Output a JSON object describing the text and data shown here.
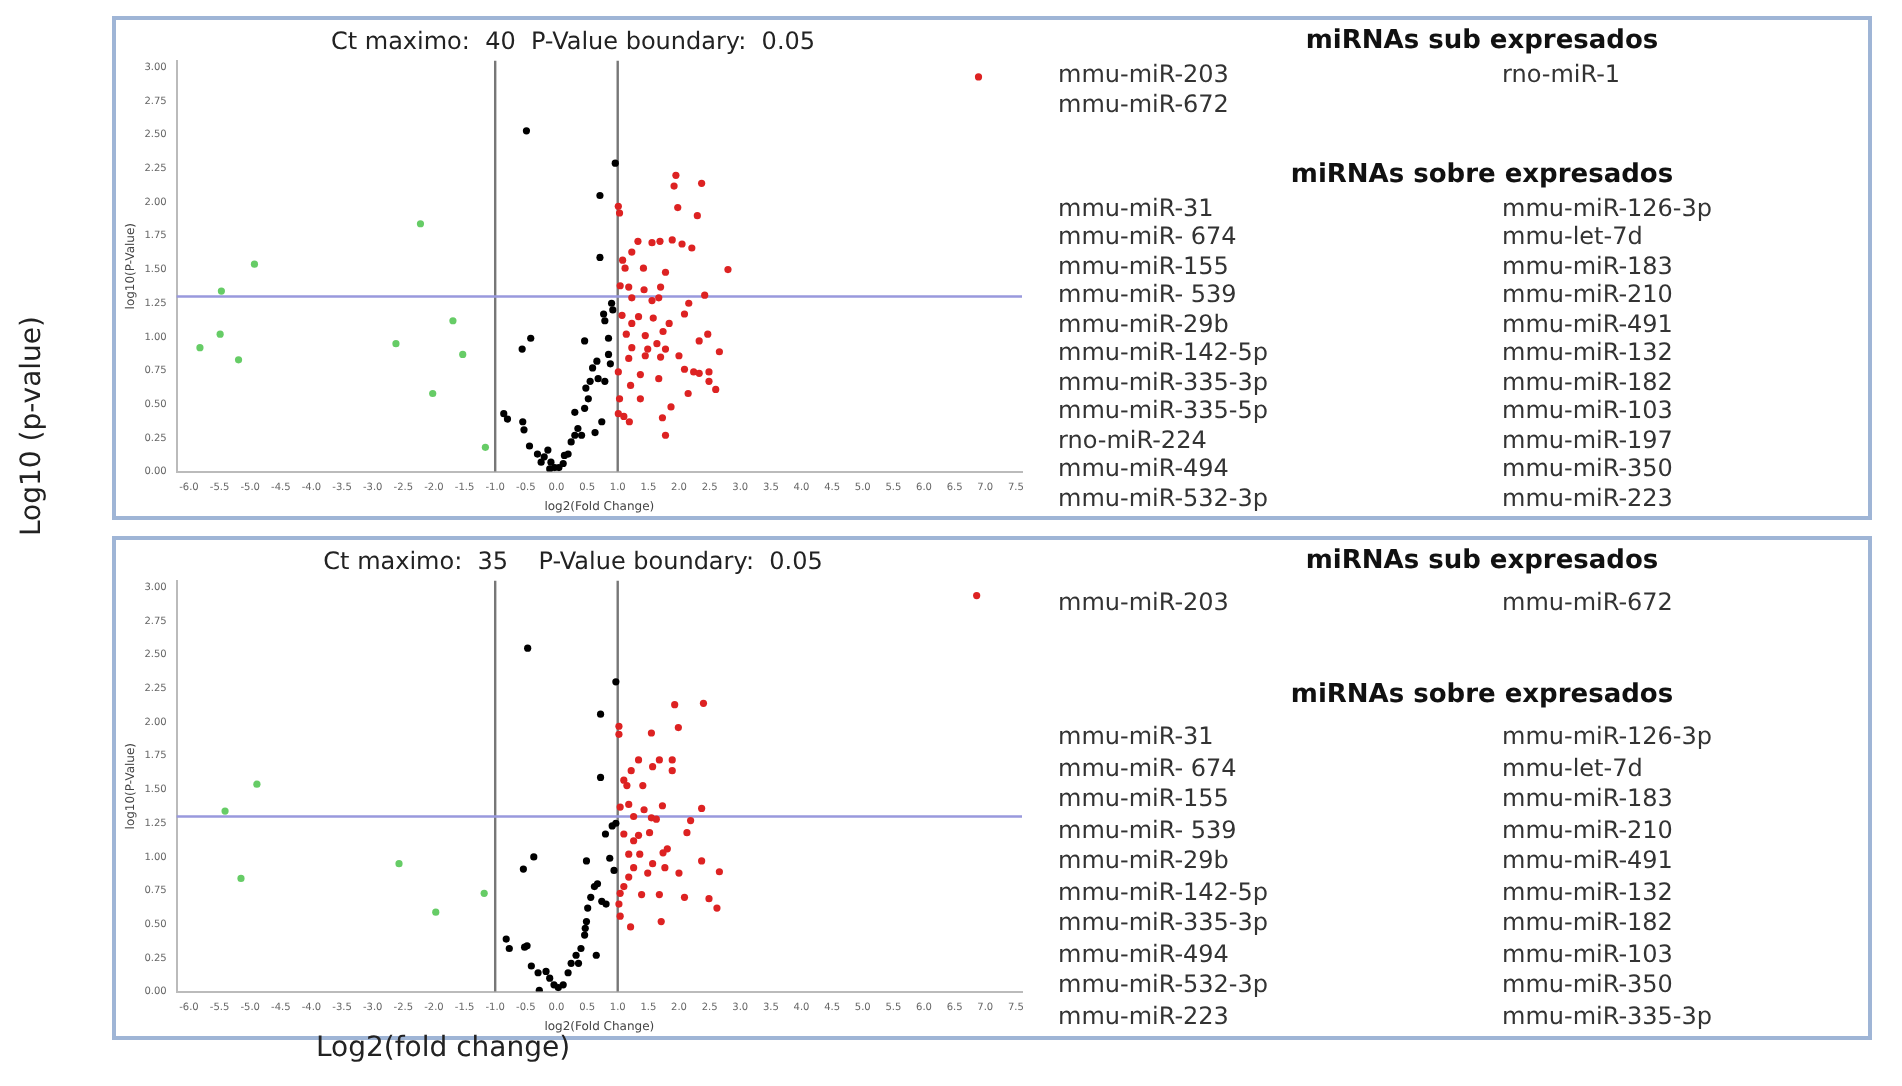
{
  "chart_data": [
    {
      "type": "scatter",
      "title": "Ct maximo:  40  P-Value boundary:  0.05",
      "xlabel": "log2(Fold Change)",
      "ylabel": "log10(P-Value)",
      "xlim": [
        -6.2,
        7.6
      ],
      "ylim": [
        0,
        3.05
      ],
      "xticks": [
        {
          "value": -6,
          "label": "-6.0"
        },
        {
          "value": -5.5,
          "label": "-5.5"
        },
        {
          "value": -5,
          "label": "-5.0"
        },
        {
          "value": -4.5,
          "label": "-4.5"
        },
        {
          "value": -4,
          "label": "-4.0"
        },
        {
          "value": -3.5,
          "label": "-3.5"
        },
        {
          "value": -3,
          "label": "-3.0"
        },
        {
          "value": -2.5,
          "label": "-2.5"
        },
        {
          "value": -2,
          "label": "-2.0"
        },
        {
          "value": -1.5,
          "label": "-1.5"
        },
        {
          "value": -1,
          "label": "-1.0"
        },
        {
          "value": -0.5,
          "label": "-0.5"
        },
        {
          "value": 0,
          "label": "0.0"
        },
        {
          "value": 0.5,
          "label": "0.5"
        },
        {
          "value": 1,
          "label": "1.0"
        },
        {
          "value": 1.5,
          "label": "1.5"
        },
        {
          "value": 2,
          "label": "2.0"
        },
        {
          "value": 2.5,
          "label": "2.5"
        },
        {
          "value": 3,
          "label": "3.0"
        },
        {
          "value": 3.5,
          "label": "3.5"
        },
        {
          "value": 4,
          "label": "4.0"
        },
        {
          "value": 4.5,
          "label": "4.5"
        },
        {
          "value": 5,
          "label": "5.0"
        },
        {
          "value": 5.5,
          "label": "5.5"
        },
        {
          "value": 6,
          "label": "6.0"
        },
        {
          "value": 6.5,
          "label": "6.5"
        },
        {
          "value": 7,
          "label": "7.0"
        },
        {
          "value": 7.5,
          "label": "7.5"
        }
      ],
      "yticks": [
        {
          "value": 0,
          "label": "0.00"
        },
        {
          "value": 0.25,
          "label": "0.25"
        },
        {
          "value": 0.5,
          "label": "0.50"
        },
        {
          "value": 0.75,
          "label": "0.75"
        },
        {
          "value": 1,
          "label": "1.00"
        },
        {
          "value": 1.25,
          "label": "1.25"
        },
        {
          "value": 1.5,
          "label": "1.50"
        },
        {
          "value": 1.75,
          "label": "1.75"
        },
        {
          "value": 2,
          "label": "2.00"
        },
        {
          "value": 2.25,
          "label": "2.25"
        },
        {
          "value": 2.5,
          "label": "2.50"
        },
        {
          "value": 2.75,
          "label": "2.75"
        },
        {
          "value": 3,
          "label": "3.00"
        }
      ],
      "marker": "circle",
      "legend": false,
      "grid": false,
      "ref_lines": [
        {
          "axis": "x",
          "value": -1,
          "color": "#777777"
        },
        {
          "axis": "x",
          "value": 1,
          "color": "#777777"
        },
        {
          "axis": "y",
          "value": 1.3,
          "color": "#9999dd"
        }
      ],
      "series": [
        {
          "color": "#66cc66",
          "x": [
            -5.82,
            -5.49,
            -5.47,
            -5.19,
            -4.93,
            -2.62,
            -2.22,
            -2.02,
            -1.69,
            -1.53,
            -1.16
          ],
          "values": [
            0.92,
            1.02,
            1.34,
            0.83,
            1.54,
            0.95,
            1.84,
            0.58,
            1.12,
            0.87,
            0.18
          ]
        },
        {
          "color": "#000000",
          "x": [
            -0.49,
            0.96,
            0.71,
            0.71,
            -0.42,
            -0.56,
            0.46,
            0.85,
            0.77,
            0.9,
            0.92,
            -0.86,
            -0.8,
            -0.55,
            -0.53,
            -0.44,
            -0.31,
            -0.2,
            -0.14,
            -0.09,
            -0.03,
            0.04,
            0.11,
            0.19,
            0.24,
            0.3,
            0.35,
            0.41,
            0.46,
            0.48,
            0.55,
            0.59,
            0.66,
            0.68,
            0.74,
            0.79,
            0.85,
            0.63,
            0.3,
            0.52,
            0.13,
            -0.25,
            0.79,
            0.88,
            -0.11
          ],
          "values": [
            2.53,
            2.29,
            2.05,
            1.59,
            0.99,
            0.91,
            0.97,
            0.99,
            1.17,
            1.25,
            1.2,
            0.43,
            0.39,
            0.37,
            0.31,
            0.19,
            0.13,
            0.11,
            0.16,
            0.07,
            0.03,
            0.03,
            0.06,
            0.13,
            0.22,
            0.27,
            0.32,
            0.27,
            0.47,
            0.62,
            0.67,
            0.77,
            0.82,
            0.69,
            0.37,
            0.67,
            0.87,
            0.29,
            0.44,
            0.54,
            0.12,
            0.07,
            1.12,
            0.8,
            0.02
          ]
        },
        {
          "color": "#dd2222",
          "x": [
            6.89,
            1.01,
            1.03,
            1.95,
            1.92,
            2.37,
            1.98,
            2.3,
            1.33,
            1.56,
            1.69,
            1.89,
            2.05,
            2.21,
            1.23,
            1.08,
            1.12,
            1.42,
            2.8,
            1.78,
            1.04,
            1.18,
            1.43,
            1.7,
            2.42,
            1.23,
            1.56,
            1.67,
            2.16,
            2.09,
            1.07,
            1.34,
            1.58,
            1.84,
            1.23,
            1.14,
            1.45,
            1.74,
            2.47,
            2.33,
            1.64,
            1.23,
            1.49,
            1.78,
            2.66,
            1.45,
            2.0,
            1.18,
            1.7,
            1.01,
            2.09,
            2.24,
            2.49,
            2.33,
            1.37,
            1.67,
            2.49,
            2.6,
            1.21,
            2.15,
            1.03,
            1.37,
            1.87,
            1.01,
            1.1,
            1.19,
            1.73,
            1.78
          ],
          "values": [
            2.93,
            1.97,
            1.92,
            2.2,
            2.12,
            2.14,
            1.96,
            1.9,
            1.71,
            1.7,
            1.71,
            1.72,
            1.69,
            1.66,
            1.63,
            1.57,
            1.51,
            1.51,
            1.5,
            1.48,
            1.38,
            1.37,
            1.35,
            1.37,
            1.31,
            1.29,
            1.27,
            1.29,
            1.25,
            1.17,
            1.16,
            1.15,
            1.14,
            1.1,
            1.1,
            1.02,
            1.01,
            1.04,
            1.02,
            0.97,
            0.95,
            0.92,
            0.91,
            0.91,
            0.89,
            0.86,
            0.86,
            0.84,
            0.85,
            0.74,
            0.76,
            0.74,
            0.74,
            0.73,
            0.72,
            0.69,
            0.67,
            0.61,
            0.64,
            0.58,
            0.54,
            0.54,
            0.48,
            0.43,
            0.41,
            0.37,
            0.4,
            0.27
          ]
        }
      ]
    },
    {
      "type": "other",
      "title": "miRNAs sub expresados",
      "annotations": [
        "mmu-miR-203",
        "mmu-miR-672",
        "rno-miR-1"
      ]
    },
    {
      "type": "other",
      "title": "miRNAs sobre expresados",
      "annotations": [
        "mmu-miR-31",
        "mmu-miR- 674",
        "mmu-miR-155",
        "mmu-miR- 539",
        "mmu-miR-29b",
        "mmu-miR-142-5p",
        "mmu-miR-335-3p",
        "mmu-miR-335-5p",
        "rno-miR-224",
        "mmu-miR-494",
        "mmu-miR-532-3p",
        "mmu-miR-126-3p",
        "mmu-let-7d",
        "mmu-miR-183",
        "mmu-miR-210",
        "mmu-miR-491",
        "mmu-miR-132",
        "mmu-miR-182",
        "mmu-miR-103",
        "mmu-miR-197",
        "mmu-miR-350",
        "mmu-miR-223"
      ]
    },
    {
      "type": "scatter",
      "title": "Ct maximo:  35    P-Value boundary:  0.05",
      "xlabel": "log2(Fold Change)",
      "ylabel": "log10(P-Value)",
      "xlim": [
        -6.2,
        7.6
      ],
      "ylim": [
        0,
        3.05
      ],
      "xticks": [
        {
          "value": -6,
          "label": "-6.0"
        },
        {
          "value": -5.5,
          "label": "-5.5"
        },
        {
          "value": -5,
          "label": "-5.0"
        },
        {
          "value": -4.5,
          "label": "-4.5"
        },
        {
          "value": -4,
          "label": "-4.0"
        },
        {
          "value": -3.5,
          "label": "-3.5"
        },
        {
          "value": -3,
          "label": "-3.0"
        },
        {
          "value": -2.5,
          "label": "-2.5"
        },
        {
          "value": -2,
          "label": "-2.0"
        },
        {
          "value": -1.5,
          "label": "-1.5"
        },
        {
          "value": -1,
          "label": "-1.0"
        },
        {
          "value": -0.5,
          "label": "-0.5"
        },
        {
          "value": 0,
          "label": "0.0"
        },
        {
          "value": 0.5,
          "label": "0.5"
        },
        {
          "value": 1,
          "label": "1.0"
        },
        {
          "value": 1.5,
          "label": "1.5"
        },
        {
          "value": 2,
          "label": "2.0"
        },
        {
          "value": 2.5,
          "label": "2.5"
        },
        {
          "value": 3,
          "label": "3.0"
        },
        {
          "value": 3.5,
          "label": "3.5"
        },
        {
          "value": 4,
          "label": "4.0"
        },
        {
          "value": 4.5,
          "label": "4.5"
        },
        {
          "value": 5,
          "label": "5.0"
        },
        {
          "value": 5.5,
          "label": "5.5"
        },
        {
          "value": 6,
          "label": "6.0"
        },
        {
          "value": 6.5,
          "label": "6.5"
        },
        {
          "value": 7,
          "label": "7.0"
        },
        {
          "value": 7.5,
          "label": "7.5"
        }
      ],
      "yticks": [
        {
          "value": 0,
          "label": "0.00"
        },
        {
          "value": 0.25,
          "label": "0.25"
        },
        {
          "value": 0.5,
          "label": "0.50"
        },
        {
          "value": 0.75,
          "label": "0.75"
        },
        {
          "value": 1,
          "label": "1.00"
        },
        {
          "value": 1.25,
          "label": "1.25"
        },
        {
          "value": 1.5,
          "label": "1.50"
        },
        {
          "value": 1.75,
          "label": "1.75"
        },
        {
          "value": 2,
          "label": "2.00"
        },
        {
          "value": 2.25,
          "label": "2.25"
        },
        {
          "value": 2.5,
          "label": "2.50"
        },
        {
          "value": 2.75,
          "label": "2.75"
        },
        {
          "value": 3,
          "label": "3.00"
        }
      ],
      "marker": "circle",
      "legend": false,
      "grid": false,
      "ref_lines": [
        {
          "axis": "x",
          "value": -1,
          "color": "#777777"
        },
        {
          "axis": "x",
          "value": 1,
          "color": "#777777"
        },
        {
          "axis": "y",
          "value": 1.3,
          "color": "#9999dd"
        }
      ],
      "series": [
        {
          "color": "#66cc66",
          "x": [
            -5.41,
            -5.15,
            -4.89,
            -2.57,
            -1.97,
            -1.18
          ],
          "values": [
            1.34,
            0.84,
            1.54,
            0.95,
            0.59,
            0.73
          ]
        },
        {
          "color": "#000000",
          "x": [
            -0.47,
            0.97,
            0.72,
            0.72,
            -0.37,
            -0.54,
            0.49,
            0.87,
            0.8,
            0.91,
            0.97,
            0.94,
            -0.82,
            -0.52,
            -0.48,
            -0.41,
            -0.3,
            -0.17,
            -0.11,
            -0.04,
            0.03,
            0.11,
            0.19,
            0.24,
            0.32,
            0.4,
            0.46,
            0.49,
            0.51,
            0.56,
            0.62,
            0.67,
            0.74,
            0.81,
            0.65,
            0.47,
            0.36,
            -0.28,
            -0.77
          ],
          "values": [
            2.55,
            2.3,
            2.06,
            1.59,
            1.0,
            0.91,
            0.97,
            0.99,
            1.17,
            1.23,
            1.25,
            0.9,
            0.39,
            0.33,
            0.34,
            0.19,
            0.14,
            0.15,
            0.1,
            0.05,
            0.03,
            0.05,
            0.14,
            0.21,
            0.27,
            0.32,
            0.42,
            0.52,
            0.62,
            0.7,
            0.78,
            0.8,
            0.67,
            0.65,
            0.27,
            0.47,
            0.21,
            0.01,
            0.32
          ]
        },
        {
          "color": "#dd2222",
          "x": [
            6.86,
            1.02,
            1.02,
            1.93,
            2.4,
            1.99,
            1.55,
            1.34,
            1.68,
            1.89,
            1.57,
            1.89,
            1.22,
            1.1,
            1.15,
            1.41,
            1.04,
            1.18,
            1.43,
            1.73,
            2.37,
            1.26,
            1.55,
            1.63,
            2.19,
            2.13,
            1.1,
            1.34,
            1.52,
            1.81,
            1.26,
            1.18,
            1.36,
            1.74,
            2.37,
            1.57,
            1.26,
            1.49,
            1.77,
            2.66,
            2.0,
            1.18,
            1.1,
            1.04,
            1.39,
            1.68,
            2.09,
            2.49,
            2.62,
            1.02,
            1.04,
            1.71,
            1.21
          ],
          "values": [
            2.94,
            1.97,
            1.91,
            2.13,
            2.14,
            1.96,
            1.92,
            1.72,
            1.72,
            1.72,
            1.67,
            1.64,
            1.64,
            1.57,
            1.53,
            1.53,
            1.37,
            1.39,
            1.35,
            1.38,
            1.36,
            1.3,
            1.29,
            1.28,
            1.27,
            1.18,
            1.17,
            1.16,
            1.18,
            1.06,
            1.12,
            1.02,
            1.02,
            1.03,
            0.97,
            0.95,
            0.92,
            0.88,
            0.92,
            0.89,
            0.88,
            0.85,
            0.78,
            0.73,
            0.72,
            0.72,
            0.7,
            0.69,
            0.62,
            0.65,
            0.56,
            0.52,
            0.48
          ]
        }
      ]
    },
    {
      "type": "other",
      "title": "miRNAs sub expresados",
      "annotations": [
        "mmu-miR-203",
        "mmu-miR-672"
      ]
    },
    {
      "type": "other",
      "title": "miRNAs sobre expresados",
      "annotations": [
        "mmu-miR-31",
        "mmu-miR- 674",
        "mmu-miR-155",
        "mmu-miR- 539",
        "mmu-miR-29b",
        "mmu-miR-142-5p",
        "mmu-miR-335-3p",
        "mmu-miR-494",
        "mmu-miR-532-3p",
        "mmu-miR-223",
        "mmu-miR-126-3p",
        "mmu-let-7d",
        "mmu-miR-183",
        "mmu-miR-210",
        "mmu-miR-491",
        "mmu-miR-132",
        "mmu-miR-182",
        "mmu-miR-103",
        "mmu-miR-350",
        "mmu-miR-335-3p"
      ]
    },
    {
      "type": "other",
      "annotations": [
        "Log10 (p-value)",
        "Log2(fold change)"
      ]
    }
  ]
}
